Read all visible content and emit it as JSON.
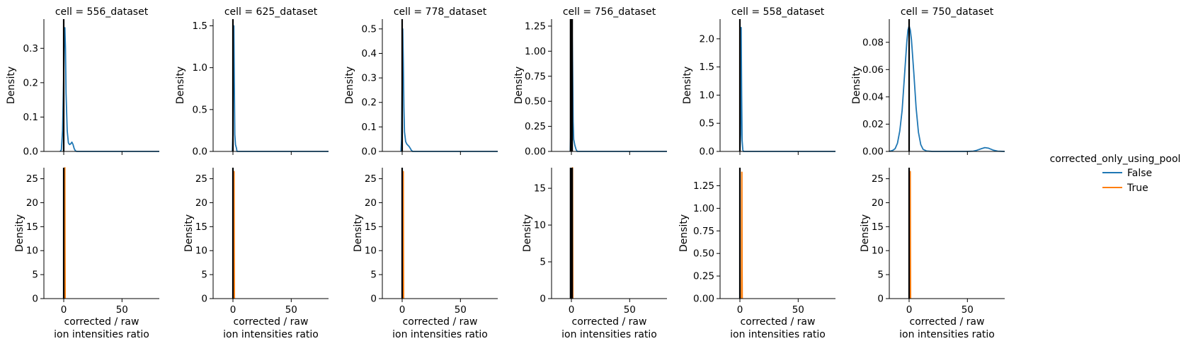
{
  "chart_data": {
    "type": "line",
    "layout": "facet-grid",
    "x_range": [
      -17,
      82
    ],
    "x_ticks": [
      0,
      50
    ],
    "xlabel_line1": "corrected / raw",
    "xlabel_line2": "ion intensities ratio",
    "ylabel": "Density",
    "legend": {
      "title": "corrected_only_using_pool",
      "position": "right",
      "entries": [
        {
          "label": "False",
          "color": "#1f77b4"
        },
        {
          "label": "True",
          "color": "#ff7f0e"
        }
      ]
    },
    "colors": {
      "False": "#1f77b4",
      "True": "#ff7f0e",
      "vline": "#000000"
    },
    "panels": [
      {
        "title": "cell = 556_dataset",
        "top": {
          "ylim": [
            0,
            0.385
          ],
          "yticks": [
            0.0,
            0.1,
            0.2,
            0.3
          ],
          "yticklabels": [
            "0.0",
            "0.1",
            "0.2",
            "0.3"
          ],
          "vlines": [
            0
          ],
          "curves": [
            {
              "series": "False",
              "points": [
                [
                  -3,
                  0
                ],
                [
                  -2,
                  0.005
                ],
                [
                  -1,
                  0.06
                ],
                [
                  0,
                  0.22
                ],
                [
                  0.5,
                  0.34
                ],
                [
                  1,
                  0.36
                ],
                [
                  1.5,
                  0.3
                ],
                [
                  2,
                  0.17
                ],
                [
                  3,
                  0.06
                ],
                [
                  4,
                  0.025
                ],
                [
                  5,
                  0.02
                ],
                [
                  6,
                  0.022
                ],
                [
                  7,
                  0.027
                ],
                [
                  8,
                  0.02
                ],
                [
                  9,
                  0.008
                ],
                [
                  10,
                  0.002
                ],
                [
                  11,
                  0
                ],
                [
                  82,
                  0
                ]
              ]
            }
          ]
        },
        "bottom": {
          "ylim": [
            0,
            27.3
          ],
          "yticks": [
            0,
            5,
            10,
            15,
            20,
            25
          ],
          "yticklabels": [
            "0",
            "5",
            "10",
            "15",
            "20",
            "25"
          ],
          "vlines": [
            0
          ],
          "curves": [
            {
              "series": "True",
              "points": [
                [
                  0.7,
                  0
                ],
                [
                  0.85,
                  10
                ],
                [
                  1,
                  27.3
                ],
                [
                  1.15,
                  10
                ],
                [
                  1.3,
                  0
                ]
              ]
            }
          ]
        }
      },
      {
        "title": "cell = 625_dataset",
        "top": {
          "ylim": [
            0,
            1.58
          ],
          "yticks": [
            0.0,
            0.5,
            1.0,
            1.5
          ],
          "yticklabels": [
            "0.0",
            "0.5",
            "1.0",
            "1.5"
          ],
          "vlines": [
            0
          ],
          "curves": [
            {
              "series": "False",
              "points": [
                [
                  -0.5,
                  0
                ],
                [
                  0,
                  0.2
                ],
                [
                  0.4,
                  1.4
                ],
                [
                  0.8,
                  1.5
                ],
                [
                  1.2,
                  0.8
                ],
                [
                  1.6,
                  0.2
                ],
                [
                  2.2,
                  0.08
                ],
                [
                  3,
                  0.04
                ],
                [
                  3.5,
                  0
                ],
                [
                  82,
                  0
                ]
              ]
            }
          ]
        },
        "bottom": {
          "ylim": [
            0,
            27.3
          ],
          "yticks": [
            0,
            5,
            10,
            15,
            20,
            25
          ],
          "yticklabels": [
            "0",
            "5",
            "10",
            "15",
            "20",
            "25"
          ],
          "vlines": [
            0
          ],
          "curves": [
            {
              "series": "True",
              "points": [
                [
                  0.7,
                  0
                ],
                [
                  0.85,
                  10
                ],
                [
                  1,
                  26.5
                ],
                [
                  1.15,
                  10
                ],
                [
                  1.3,
                  0
                ]
              ]
            }
          ]
        }
      },
      {
        "title": "cell = 778_dataset",
        "top": {
          "ylim": [
            0,
            0.54
          ],
          "yticks": [
            0.0,
            0.1,
            0.2,
            0.3,
            0.4,
            0.5
          ],
          "yticklabels": [
            "0.0",
            "0.1",
            "0.2",
            "0.3",
            "0.4",
            "0.5"
          ],
          "vlines": [
            0
          ],
          "curves": [
            {
              "series": "False",
              "points": [
                [
                  -1,
                  0
                ],
                [
                  -0.5,
                  0.05
                ],
                [
                  0,
                  0.3
                ],
                [
                  0.5,
                  0.5
                ],
                [
                  1,
                  0.36
                ],
                [
                  1.5,
                  0.18
                ],
                [
                  2,
                  0.08
                ],
                [
                  3,
                  0.04
                ],
                [
                  4,
                  0.03
                ],
                [
                  5,
                  0.025
                ],
                [
                  6,
                  0.02
                ],
                [
                  7,
                  0.012
                ],
                [
                  8,
                  0.004
                ],
                [
                  9,
                  0
                ],
                [
                  82,
                  0
                ]
              ]
            }
          ]
        },
        "bottom": {
          "ylim": [
            0,
            27.3
          ],
          "yticks": [
            0,
            5,
            10,
            15,
            20,
            25
          ],
          "yticklabels": [
            "0",
            "5",
            "10",
            "15",
            "20",
            "25"
          ],
          "vlines": [
            0
          ],
          "curves": [
            {
              "series": "True",
              "points": [
                [
                  0.7,
                  0
                ],
                [
                  0.85,
                  10
                ],
                [
                  1,
                  26.5
                ],
                [
                  1.15,
                  10
                ],
                [
                  1.3,
                  0
                ]
              ]
            }
          ]
        }
      },
      {
        "title": "cell = 756_dataset",
        "top": {
          "ylim": [
            0,
            1.32
          ],
          "yticks": [
            0.0,
            0.25,
            0.5,
            0.75,
            1.0,
            1.25
          ],
          "yticklabels": [
            "0.00",
            "0.25",
            "0.50",
            "0.75",
            "1.00",
            "1.25"
          ],
          "vlines": [
            -0.7,
            -0.35,
            0,
            0.35,
            0.7
          ],
          "curves": [
            {
              "series": "False",
              "points": [
                [
                  -1,
                  0
                ],
                [
                  0,
                  0.4
                ],
                [
                  0.5,
                  1.3
                ],
                [
                  1,
                  0.9
                ],
                [
                  1.5,
                  0.3
                ],
                [
                  2,
                  0.12
                ],
                [
                  3,
                  0.06
                ],
                [
                  4,
                  0.02
                ],
                [
                  5,
                  0
                ],
                [
                  82,
                  0
                ]
              ]
            }
          ]
        },
        "bottom": {
          "ylim": [
            0,
            17.8
          ],
          "yticks": [
            0,
            5,
            10,
            15
          ],
          "yticklabels": [
            "0",
            "5",
            "10",
            "15"
          ],
          "vlines": [
            -0.7,
            -0.35,
            0,
            0.35,
            0.7
          ],
          "curves": [
            {
              "series": "True",
              "points": [
                [
                  0.7,
                  0
                ],
                [
                  0.85,
                  8
                ],
                [
                  1,
                  17.8
                ],
                [
                  1.15,
                  8
                ],
                [
                  1.3,
                  0
                ]
              ]
            }
          ]
        }
      },
      {
        "title": "cell = 558_dataset",
        "top": {
          "ylim": [
            0,
            2.35
          ],
          "yticks": [
            0.0,
            0.5,
            1.0,
            1.5,
            2.0
          ],
          "yticklabels": [
            "0.0",
            "0.5",
            "1.0",
            "1.5",
            "2.0"
          ],
          "vlines": [
            0
          ],
          "curves": [
            {
              "series": "False",
              "points": [
                [
                  0,
                  0
                ],
                [
                  0.6,
                  0.3
                ],
                [
                  1.1,
                  2.2
                ],
                [
                  1.5,
                  1.0
                ],
                [
                  1.9,
                  0.2
                ],
                [
                  2.5,
                  0.03
                ],
                [
                  3,
                  0
                ],
                [
                  82,
                  0
                ]
              ]
            }
          ]
        },
        "bottom": {
          "ylim": [
            0,
            1.45
          ],
          "yticks": [
            0.0,
            0.25,
            0.5,
            0.75,
            1.0,
            1.25
          ],
          "yticklabels": [
            "0.00",
            "0.25",
            "0.50",
            "0.75",
            "1.00",
            "1.25"
          ],
          "vlines": [
            0
          ],
          "curves": [
            {
              "series": "True",
              "points": [
                [
                  1.3,
                  0
                ],
                [
                  1.45,
                  0.4
                ],
                [
                  1.6,
                  1.4
                ],
                [
                  1.75,
                  1.4
                ],
                [
                  1.9,
                  0.4
                ],
                [
                  2.05,
                  0
                ]
              ]
            }
          ]
        }
      },
      {
        "title": "cell = 750_dataset",
        "top": {
          "ylim": [
            0,
            0.097
          ],
          "yticks": [
            0.0,
            0.02,
            0.04,
            0.06,
            0.08
          ],
          "yticklabels": [
            "0.00",
            "0.02",
            "0.04",
            "0.06",
            "0.08"
          ],
          "vlines": [
            0
          ],
          "curves": [
            {
              "series": "False",
              "points": [
                [
                  -17,
                  0
                ],
                [
                  -14,
                  0.0008
                ],
                [
                  -12,
                  0.002
                ],
                [
                  -10,
                  0.006
                ],
                [
                  -8,
                  0.015
                ],
                [
                  -6,
                  0.03
                ],
                [
                  -4,
                  0.055
                ],
                [
                  -2,
                  0.08
                ],
                [
                  -1,
                  0.089
                ],
                [
                  0,
                  0.092
                ],
                [
                  1,
                  0.089
                ],
                [
                  2,
                  0.082
                ],
                [
                  4,
                  0.058
                ],
                [
                  6,
                  0.032
                ],
                [
                  8,
                  0.014
                ],
                [
                  10,
                  0.005
                ],
                [
                  12,
                  0.0015
                ],
                [
                  15,
                  0.0003
                ],
                [
                  20,
                  0
                ],
                [
                  50,
                  0
                ],
                [
                  55,
                  0.0002
                ],
                [
                  58,
                  0.0008
                ],
                [
                  62,
                  0.002
                ],
                [
                  65,
                  0.0028
                ],
                [
                  68,
                  0.0024
                ],
                [
                  72,
                  0.001
                ],
                [
                  76,
                  0.0002
                ],
                [
                  82,
                  0
                ]
              ]
            }
          ]
        },
        "bottom": {
          "ylim": [
            0,
            27.3
          ],
          "yticks": [
            0,
            5,
            10,
            15,
            20,
            25
          ],
          "yticklabels": [
            "0",
            "5",
            "10",
            "15",
            "20",
            "25"
          ],
          "vlines": [
            0
          ],
          "curves": [
            {
              "series": "True",
              "points": [
                [
                  0.7,
                  0
                ],
                [
                  0.85,
                  10
                ],
                [
                  1,
                  26.5
                ],
                [
                  1.15,
                  10
                ],
                [
                  1.3,
                  0
                ]
              ]
            }
          ]
        }
      }
    ]
  }
}
